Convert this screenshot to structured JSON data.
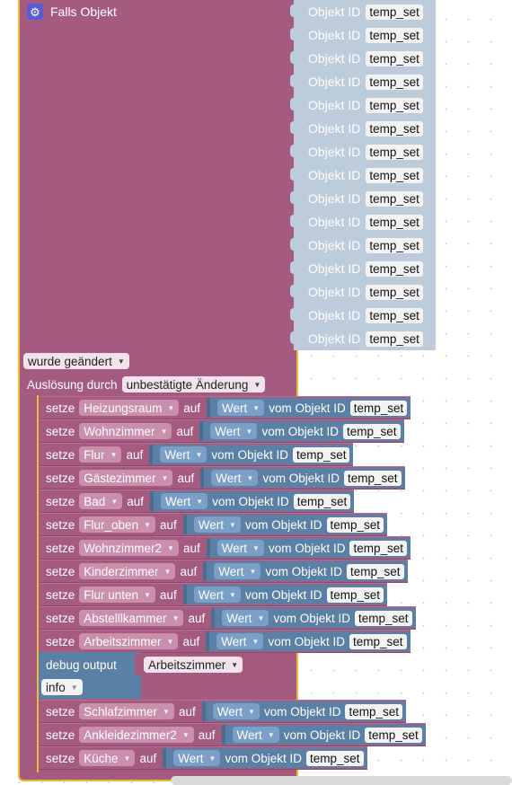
{
  "event": {
    "title": "Falls Objekt",
    "icon": "gear-icon",
    "object_ids": [
      "temp_set",
      "temp_set",
      "temp_set",
      "temp_set",
      "temp_set",
      "temp_set",
      "temp_set",
      "temp_set",
      "temp_set",
      "temp_set",
      "temp_set",
      "temp_set",
      "temp_set",
      "temp_set",
      "temp_set"
    ],
    "oid_label": "Objekt ID",
    "change_type": "wurde geändert",
    "trigger_label": "Auslösung durch",
    "trigger_value": "unbestätigte Änderung"
  },
  "labels": {
    "set": "setze",
    "on": "auf",
    "value": "Wert",
    "from_object": "vom Objekt ID"
  },
  "statements_top": [
    {
      "target": "Heizungsraum",
      "oid": "temp_set"
    },
    {
      "target": "Wohnzimmer",
      "oid": "temp_set"
    },
    {
      "target": "Flur",
      "oid": "temp_set"
    },
    {
      "target": "Gästezimmer",
      "oid": "temp_set"
    },
    {
      "target": "Bad",
      "oid": "temp_set"
    },
    {
      "target": "Flur_oben",
      "oid": "temp_set"
    },
    {
      "target": "Wohnzimmer2",
      "oid": "temp_set"
    },
    {
      "target": "Kinderzimmer",
      "oid": "temp_set"
    },
    {
      "target": "Flur unten",
      "oid": "temp_set"
    },
    {
      "target": "Abstelllkammer",
      "oid": "temp_set"
    },
    {
      "target": "Arbeitszimmer",
      "oid": "temp_set"
    }
  ],
  "debug": {
    "label": "debug output",
    "value": "Arbeitszimmer",
    "level": "info"
  },
  "statements_bottom": [
    {
      "target": "Schlafzimmer",
      "oid": "temp_set"
    },
    {
      "target": "Ankleidezimmer2",
      "oid": "temp_set"
    },
    {
      "target": "Küche",
      "oid": "temp_set"
    }
  ]
}
